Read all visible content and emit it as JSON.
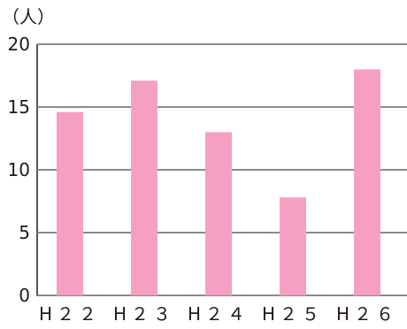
{
  "chart_data": {
    "type": "bar",
    "unit_label": "（人）",
    "categories": [
      "H22",
      "H23",
      "H24",
      "H25",
      "H26"
    ],
    "category_labels": [
      "H２２",
      "H２３",
      "H２４",
      "H２５",
      "H２６"
    ],
    "values": [
      14.6,
      17.1,
      13.0,
      7.8,
      18.0
    ],
    "y_ticks": [
      0,
      5,
      10,
      15,
      20
    ],
    "ylim": [
      0,
      20
    ],
    "bar_color": "#f5a0c3",
    "grid_color": "#8a8a8a",
    "grid": true
  }
}
